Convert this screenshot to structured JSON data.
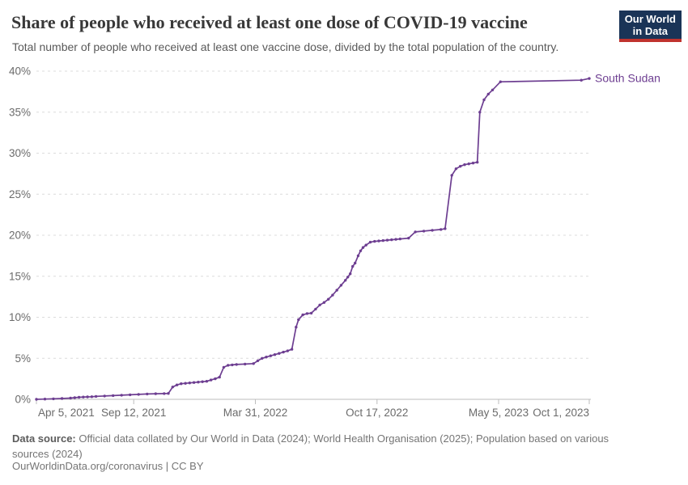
{
  "header": {
    "title": "Share of people who received at least one dose of COVID-19 vaccine",
    "subtitle": "Total number of people who received at least one vaccine dose, divided by the total population of the country.",
    "logo": {
      "line1": "Our World",
      "line2": "in Data",
      "bg_color": "#1a3457",
      "bar_color": "#c0332e"
    }
  },
  "chart_data": {
    "type": "line",
    "title": "Share of people who received at least one dose of COVID-19 vaccine",
    "subtitle": "Total number of people who received at least one vaccine dose, divided by the total population of the country.",
    "xlabel": "",
    "ylabel": "",
    "ylim": [
      0,
      40
    ],
    "y_ticks": [
      0,
      5,
      10,
      15,
      20,
      25,
      30,
      35,
      40
    ],
    "y_tick_suffix": "%",
    "grid": "horizontal-dashed",
    "legend_position": "end-of-line-label",
    "x_range": [
      "2021-04-05",
      "2023-10-01"
    ],
    "x_ticks": [
      {
        "date": "2021-04-05",
        "label": "Apr 5, 2021"
      },
      {
        "date": "2021-09-12",
        "label": "Sep 12, 2021"
      },
      {
        "date": "2022-03-31",
        "label": "Mar 31, 2022"
      },
      {
        "date": "2022-10-17",
        "label": "Oct 17, 2022"
      },
      {
        "date": "2023-05-05",
        "label": "May 5, 2023"
      },
      {
        "date": "2023-10-01",
        "label": "Oct 1, 2023"
      }
    ],
    "colors": {
      "grid": "#dcdcdc",
      "axis": "#bdbdbd",
      "series_purple": "#6d3e91"
    },
    "series": [
      {
        "name": "South Sudan",
        "color": "#6d3e91",
        "points": [
          [
            "2021-04-05",
            0
          ],
          [
            "2021-04-19",
            0.03
          ],
          [
            "2021-05-03",
            0.06
          ],
          [
            "2021-05-17",
            0.1
          ],
          [
            "2021-05-31",
            0.15
          ],
          [
            "2021-06-07",
            0.2
          ],
          [
            "2021-06-14",
            0.25
          ],
          [
            "2021-06-21",
            0.28
          ],
          [
            "2021-06-28",
            0.3
          ],
          [
            "2021-07-05",
            0.32
          ],
          [
            "2021-07-12",
            0.35
          ],
          [
            "2021-07-26",
            0.4
          ],
          [
            "2021-08-09",
            0.45
          ],
          [
            "2021-08-23",
            0.5
          ],
          [
            "2021-09-06",
            0.55
          ],
          [
            "2021-09-20",
            0.6
          ],
          [
            "2021-10-04",
            0.65
          ],
          [
            "2021-10-18",
            0.68
          ],
          [
            "2021-11-01",
            0.7
          ],
          [
            "2021-11-08",
            0.72
          ],
          [
            "2021-11-15",
            1.5
          ],
          [
            "2021-11-22",
            1.75
          ],
          [
            "2021-11-29",
            1.9
          ],
          [
            "2021-12-06",
            1.95
          ],
          [
            "2021-12-13",
            2.0
          ],
          [
            "2021-12-20",
            2.05
          ],
          [
            "2021-12-27",
            2.1
          ],
          [
            "2022-01-03",
            2.15
          ],
          [
            "2022-01-10",
            2.2
          ],
          [
            "2022-01-17",
            2.35
          ],
          [
            "2022-01-24",
            2.5
          ],
          [
            "2022-01-31",
            2.7
          ],
          [
            "2022-02-07",
            3.9
          ],
          [
            "2022-02-14",
            4.15
          ],
          [
            "2022-02-21",
            4.2
          ],
          [
            "2022-02-28",
            4.25
          ],
          [
            "2022-03-14",
            4.3
          ],
          [
            "2022-03-28",
            4.35
          ],
          [
            "2022-04-04",
            4.7
          ],
          [
            "2022-04-11",
            5.0
          ],
          [
            "2022-04-18",
            5.15
          ],
          [
            "2022-04-25",
            5.3
          ],
          [
            "2022-05-02",
            5.45
          ],
          [
            "2022-05-09",
            5.6
          ],
          [
            "2022-05-16",
            5.75
          ],
          [
            "2022-05-23",
            5.9
          ],
          [
            "2022-05-30",
            6.1
          ],
          [
            "2022-06-06",
            8.8
          ],
          [
            "2022-06-10",
            9.7
          ],
          [
            "2022-06-17",
            10.3
          ],
          [
            "2022-06-24",
            10.45
          ],
          [
            "2022-07-01",
            10.5
          ],
          [
            "2022-07-08",
            11.0
          ],
          [
            "2022-07-15",
            11.5
          ],
          [
            "2022-07-22",
            11.8
          ],
          [
            "2022-07-29",
            12.2
          ],
          [
            "2022-08-05",
            12.7
          ],
          [
            "2022-08-12",
            13.3
          ],
          [
            "2022-08-19",
            13.9
          ],
          [
            "2022-08-26",
            14.5
          ],
          [
            "2022-08-30",
            14.9
          ],
          [
            "2022-09-03",
            15.3
          ],
          [
            "2022-09-07",
            16.2
          ],
          [
            "2022-09-11",
            16.6
          ],
          [
            "2022-09-16",
            17.5
          ],
          [
            "2022-09-20",
            18.1
          ],
          [
            "2022-09-24",
            18.5
          ],
          [
            "2022-09-29",
            18.8
          ],
          [
            "2022-10-06",
            19.15
          ],
          [
            "2022-10-13",
            19.25
          ],
          [
            "2022-10-20",
            19.3
          ],
          [
            "2022-10-27",
            19.35
          ],
          [
            "2022-11-03",
            19.4
          ],
          [
            "2022-11-10",
            19.45
          ],
          [
            "2022-11-17",
            19.5
          ],
          [
            "2022-11-24",
            19.55
          ],
          [
            "2022-12-08",
            19.65
          ],
          [
            "2022-12-19",
            20.4
          ],
          [
            "2023-01-02",
            20.5
          ],
          [
            "2023-01-16",
            20.6
          ],
          [
            "2023-01-30",
            20.7
          ],
          [
            "2023-02-06",
            20.8
          ],
          [
            "2023-02-17",
            27.3
          ],
          [
            "2023-02-24",
            28.1
          ],
          [
            "2023-03-03",
            28.4
          ],
          [
            "2023-03-10",
            28.6
          ],
          [
            "2023-03-17",
            28.7
          ],
          [
            "2023-03-24",
            28.8
          ],
          [
            "2023-03-31",
            28.9
          ],
          [
            "2023-04-04",
            35.0
          ],
          [
            "2023-04-11",
            36.5
          ],
          [
            "2023-04-18",
            37.2
          ],
          [
            "2023-04-25",
            37.7
          ],
          [
            "2023-05-08",
            38.7
          ],
          [
            "2023-09-18",
            38.9
          ],
          [
            "2023-10-01",
            39.1
          ]
        ]
      }
    ]
  },
  "footer": {
    "source_label": "Data source:",
    "source_text": " Official data collated by Our World in Data (2024); World Health Organisation (2025); Population based on various sources (2024)",
    "license_text": "OurWorldinData.org/coronavirus | CC BY"
  }
}
